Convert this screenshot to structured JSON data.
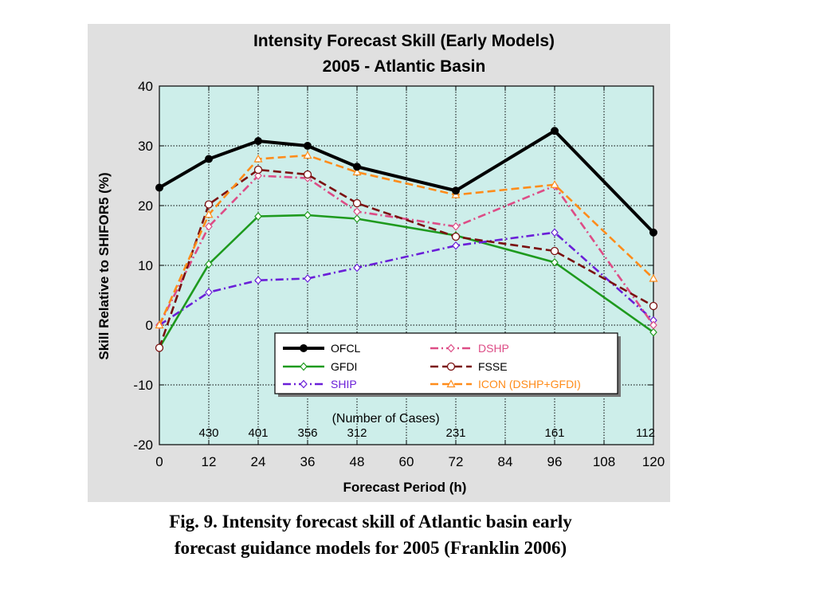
{
  "caption": {
    "line1": "Fig. 9. Intensity forecast skill of Atlantic basin early",
    "line2": "forecast guidance models for 2005 (Franklin 2006)"
  },
  "chart_data": {
    "type": "line",
    "title": "Intensity Forecast Skill (Early Models)",
    "subtitle": "2005 - Atlantic Basin",
    "xlabel": "Forecast Period (h)",
    "ylabel": "Skill Relative to SHIFOR5 (%)",
    "x": [
      0,
      12,
      24,
      36,
      48,
      72,
      96,
      120
    ],
    "xticks": [
      "0",
      "12",
      "24",
      "36",
      "48",
      "60",
      "72",
      "84",
      "96",
      "108",
      "120"
    ],
    "yticks": [
      "40",
      "30",
      "20",
      "10",
      "0",
      "-10",
      "-20"
    ],
    "xlim": [
      0,
      120
    ],
    "ylim": [
      -20,
      40
    ],
    "grid": true,
    "plot_background": "#cdeeea",
    "panel_background": "#e0e0e0",
    "legend_position": "lower-center",
    "cases_label": "(Number of Cases)",
    "cases": [
      {
        "x": 12,
        "label": "430"
      },
      {
        "x": 24,
        "label": "401"
      },
      {
        "x": 36,
        "label": "356"
      },
      {
        "x": 48,
        "label": "312"
      },
      {
        "x": 72,
        "label": "231"
      },
      {
        "x": 96,
        "label": "161"
      },
      {
        "x": 120,
        "label": "112"
      }
    ],
    "series": [
      {
        "name": "OFCL",
        "color": "#000000",
        "dash": "solid",
        "marker": "filled-circle",
        "values": [
          23,
          27.8,
          30.8,
          30,
          26.5,
          22.5,
          32.5,
          15.5
        ]
      },
      {
        "name": "GFDI",
        "color": "#1e9a1e",
        "dash": "solid",
        "marker": "diamond",
        "values": [
          -3.8,
          10.2,
          18.2,
          18.4,
          17.8,
          15,
          10.5,
          -1.2
        ]
      },
      {
        "name": "SHIP",
        "color": "#6a1fd8",
        "dash": "dashdot",
        "marker": "diamond",
        "values": [
          0,
          5.5,
          7.5,
          7.8,
          9.6,
          13.3,
          15.5,
          0.8
        ]
      },
      {
        "name": "DSHP",
        "color": "#dd4c86",
        "dash": "dashdot",
        "marker": "diamond",
        "values": [
          0,
          16.5,
          25,
          24.6,
          19,
          16.5,
          23.3,
          0
        ]
      },
      {
        "name": "FSSE",
        "color": "#7a1010",
        "dash": "dash",
        "marker": "circle",
        "values": [
          -3.8,
          20.2,
          26,
          25.2,
          20.4,
          14.8,
          12.4,
          3.2
        ]
      },
      {
        "name": "ICON (DSHP+GFDI)",
        "color": "#ff8c1a",
        "dash": "dash",
        "marker": "triangle",
        "values": [
          0,
          18.5,
          27.8,
          28.4,
          25.6,
          21.8,
          23.5,
          7.8
        ]
      }
    ]
  }
}
